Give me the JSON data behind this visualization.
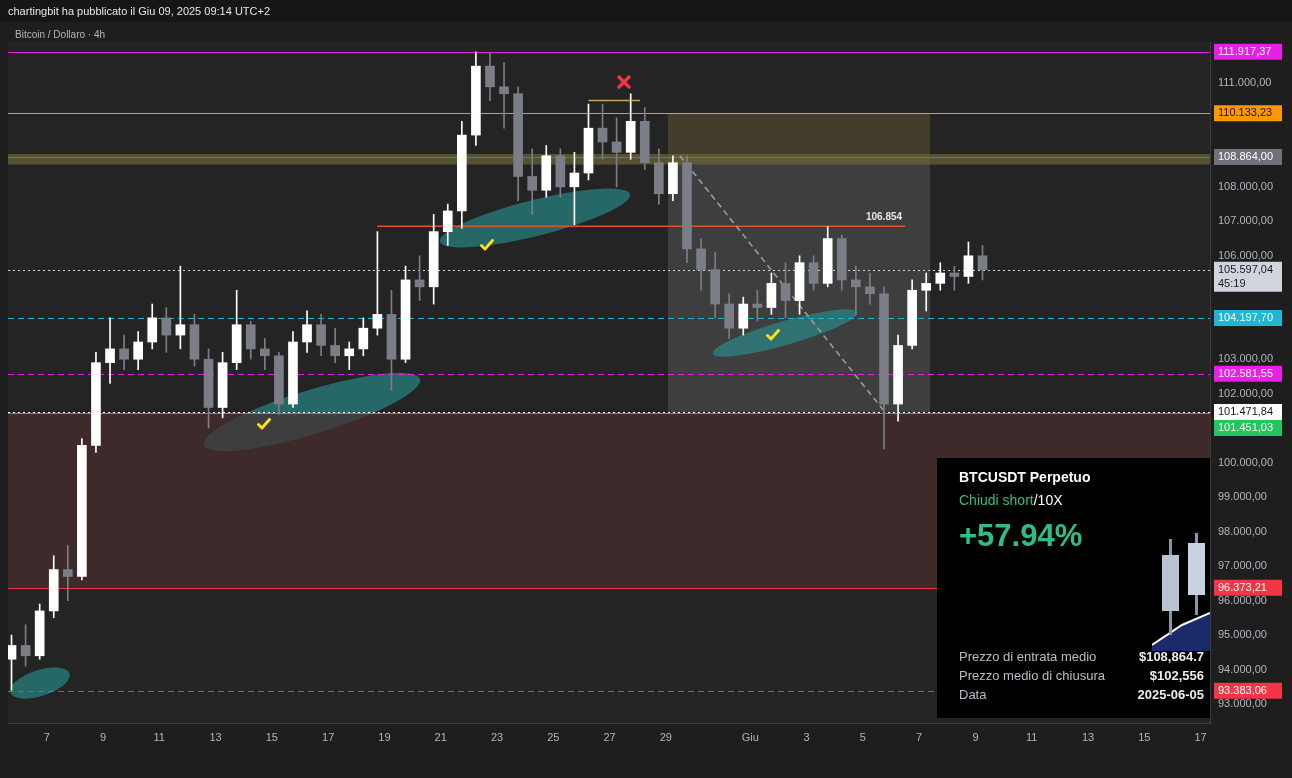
{
  "chart_data": [
    {
      "type": "candlestick",
      "title": "Bitcoin / Dollaro · 4h",
      "annotations": [
        "chartingbit ha pubblicato il Giu 09, 2025 09:14 UTC+2",
        {
          "text": "106.854",
          "x": "2025-06-05T18:00",
          "y": 106854
        }
      ],
      "x": [
        "2025-05-05T18:00",
        "2025-05-06T06:00",
        "2025-05-06T18:00",
        "2025-05-07T06:00",
        "2025-05-07T18:00",
        "2025-05-08T06:00",
        "2025-05-08T18:00",
        "2025-05-09T06:00",
        "2025-05-09T18:00",
        "2025-05-10T06:00",
        "2025-05-10T18:00",
        "2025-05-11T06:00",
        "2025-05-11T18:00",
        "2025-05-12T06:00",
        "2025-05-12T18:00",
        "2025-05-13T06:00",
        "2025-05-13T18:00",
        "2025-05-14T06:00",
        "2025-05-14T18:00",
        "2025-05-15T06:00",
        "2025-05-15T18:00",
        "2025-05-16T06:00",
        "2025-05-16T18:00",
        "2025-05-17T06:00",
        "2025-05-17T18:00",
        "2025-05-18T06:00",
        "2025-05-18T18:00",
        "2025-05-19T06:00",
        "2025-05-19T18:00",
        "2025-05-20T06:00",
        "2025-05-20T18:00",
        "2025-05-21T06:00",
        "2025-05-21T18:00",
        "2025-05-22T06:00",
        "2025-05-22T18:00",
        "2025-05-23T06:00",
        "2025-05-23T18:00",
        "2025-05-24T06:00",
        "2025-05-24T18:00",
        "2025-05-25T06:00",
        "2025-05-25T18:00",
        "2025-05-26T06:00",
        "2025-05-26T18:00",
        "2025-05-27T06:00",
        "2025-05-27T18:00",
        "2025-05-28T06:00",
        "2025-05-28T18:00",
        "2025-05-29T06:00",
        "2025-05-29T18:00",
        "2025-05-30T06:00",
        "2025-05-30T18:00",
        "2025-05-31T06:00",
        "2025-05-31T18:00",
        "2025-06-01T06:00",
        "2025-06-01T18:00",
        "2025-06-02T06:00",
        "2025-06-02T18:00",
        "2025-06-03T06:00",
        "2025-06-03T18:00",
        "2025-06-04T06:00",
        "2025-06-04T18:00",
        "2025-06-05T06:00",
        "2025-06-05T18:00",
        "2025-06-06T06:00",
        "2025-06-06T18:00",
        "2025-06-07T06:00",
        "2025-06-07T18:00",
        "2025-06-08T06:00",
        "2025-06-08T18:00",
        "2025-06-09T06:00"
      ],
      "ohlc": [
        [
          94300,
          95000,
          93400,
          94700
        ],
        [
          94700,
          95300,
          94100,
          94400
        ],
        [
          94400,
          95900,
          94300,
          95700
        ],
        [
          95700,
          97300,
          95500,
          96900
        ],
        [
          96900,
          97600,
          96000,
          96700
        ],
        [
          96700,
          100700,
          96600,
          100500
        ],
        [
          100500,
          103200,
          100300,
          102900
        ],
        [
          102900,
          104200,
          102300,
          103300
        ],
        [
          103300,
          103700,
          102700,
          103000
        ],
        [
          103000,
          103800,
          102700,
          103500
        ],
        [
          103500,
          104600,
          103300,
          104200
        ],
        [
          104200,
          104500,
          103200,
          103700
        ],
        [
          103700,
          105700,
          103300,
          104000
        ],
        [
          104000,
          104300,
          102800,
          103000
        ],
        [
          103000,
          103300,
          101000,
          101600
        ],
        [
          101600,
          103200,
          101300,
          102900
        ],
        [
          102900,
          105000,
          102700,
          104000
        ],
        [
          104000,
          104100,
          103000,
          103300
        ],
        [
          103300,
          103600,
          102700,
          103100
        ],
        [
          103100,
          103200,
          101400,
          101700
        ],
        [
          101700,
          103800,
          101600,
          103500
        ],
        [
          103500,
          104400,
          103200,
          104000
        ],
        [
          104000,
          104300,
          103100,
          103400
        ],
        [
          103400,
          103900,
          102900,
          103100
        ],
        [
          103100,
          103500,
          102700,
          103300
        ],
        [
          103300,
          104200,
          103100,
          103900
        ],
        [
          103900,
          106700,
          103700,
          104300
        ],
        [
          104300,
          105000,
          102100,
          103000
        ],
        [
          103000,
          105700,
          102900,
          105300
        ],
        [
          105300,
          106000,
          104700,
          105100
        ],
        [
          105100,
          107200,
          104600,
          106700
        ],
        [
          106700,
          107500,
          106300,
          107300
        ],
        [
          107300,
          109900,
          106800,
          109500
        ],
        [
          109500,
          111917.37,
          109200,
          111500
        ],
        [
          111500,
          111900,
          110500,
          110900
        ],
        [
          110900,
          111600,
          109700,
          110700
        ],
        [
          110700,
          110900,
          107600,
          108300
        ],
        [
          108300,
          109100,
          107200,
          107900
        ],
        [
          107900,
          109200,
          107700,
          108900
        ],
        [
          108900,
          109100,
          107700,
          108000
        ],
        [
          108000,
          109000,
          106900,
          108400
        ],
        [
          108400,
          110400,
          108200,
          109700
        ],
        [
          109700,
          110400,
          108800,
          109300
        ],
        [
          109300,
          110000,
          108000,
          109000
        ],
        [
          109000,
          110700,
          108800,
          109900
        ],
        [
          109900,
          110300,
          108500,
          108700
        ],
        [
          108700,
          109100,
          107500,
          107800
        ],
        [
          107800,
          108900,
          107600,
          108700
        ],
        [
          108700,
          108900,
          105800,
          106200
        ],
        [
          106200,
          106500,
          105000,
          105600
        ],
        [
          105600,
          106100,
          104200,
          104600
        ],
        [
          104600,
          104900,
          103600,
          103900
        ],
        [
          103900,
          104800,
          103700,
          104600
        ],
        [
          104600,
          105000,
          104100,
          104500
        ],
        [
          104500,
          105500,
          104300,
          105200
        ],
        [
          105200,
          105800,
          104200,
          104700
        ],
        [
          104700,
          106000,
          104300,
          105800
        ],
        [
          105800,
          106000,
          105000,
          105200
        ],
        [
          105200,
          106850,
          105100,
          106500
        ],
        [
          106500,
          106600,
          105000,
          105300
        ],
        [
          105300,
          105700,
          104300,
          105100
        ],
        [
          105100,
          105500,
          104600,
          104900
        ],
        [
          104900,
          105100,
          100400,
          101700
        ],
        [
          101700,
          103700,
          101200,
          103400
        ],
        [
          103400,
          105300,
          103300,
          105000
        ],
        [
          105000,
          105500,
          104400,
          105200
        ],
        [
          105200,
          105800,
          105000,
          105500
        ],
        [
          105500,
          105700,
          105000,
          105400
        ],
        [
          105400,
          106400,
          105200,
          106000
        ],
        [
          106000,
          106300,
          105300,
          105597.04
        ]
      ],
      "colors": [
        "#ffffff",
        "#7b7e87",
        "#ffffff",
        "#ffffff",
        "#7b7e87",
        "#ffffff",
        "#ffffff",
        "#ffffff",
        "#7b7e87",
        "#ffffff",
        "#ffffff",
        "#7b7e87",
        "#ffffff",
        "#7b7e87",
        "#7b7e87",
        "#ffffff",
        "#ffffff",
        "#7b7e87",
        "#7b7e87",
        "#7b7e87",
        "#ffffff",
        "#ffffff",
        "#7b7e87",
        "#7b7e87",
        "#ffffff",
        "#ffffff",
        "#ffffff",
        "#7b7e87",
        "#ffffff",
        "#7b7e87",
        "#ffffff",
        "#ffffff",
        "#ffffff",
        "#ffffff",
        "#7b7e87",
        "#7b7e87",
        "#7b7e87",
        "#7b7e87",
        "#ffffff",
        "#7b7e87",
        "#ffffff",
        "#ffffff",
        "#7b7e87",
        "#7b7e87",
        "#ffffff",
        "#7b7e87",
        "#7b7e87",
        "#ffffff",
        "#7b7e87",
        "#7b7e87",
        "#7b7e87",
        "#7b7e87",
        "#ffffff",
        "#7b7e87",
        "#ffffff",
        "#7b7e87",
        "#ffffff",
        "#7b7e87",
        "#ffffff",
        "#7b7e87",
        "#7b7e87",
        "#7b7e87",
        "#7b7e87",
        "#ffffff",
        "#ffffff",
        "#ffffff",
        "#ffffff",
        "#7b7e87",
        "#ffffff",
        "#7b7e87"
      ],
      "series": [
        {
          "type": "line",
          "color": "#a0a0a0",
          "line_style": "dashed",
          "x": [
            "2025-05-29T12:00",
            "2025-06-05T18:00"
          ],
          "values": [
            108900,
            101500
          ]
        },
        {
          "type": "line",
          "color": "#c9a45a",
          "line_style": "solid",
          "x": [
            "2025-05-26T06:00",
            "2025-05-28T02:00"
          ],
          "values": [
            110500,
            110500
          ]
        },
        {
          "type": "line",
          "color": "#e0522a",
          "line_style": "solid",
          "x": [
            "2025-05-18T18:00",
            "2025-06-06T12:00"
          ],
          "values": [
            106854,
            106854
          ]
        }
      ],
      "xlim": [
        "2025-05-05T15:00",
        "2025-06-17T08:00"
      ],
      "ylim": [
        92450,
        112200
      ],
      "xticks": [
        {
          "value": "2025-05-07",
          "label": "7"
        },
        {
          "value": "2025-05-09",
          "label": "9"
        },
        {
          "value": "2025-05-11",
          "label": "11"
        },
        {
          "value": "2025-05-13",
          "label": "13"
        },
        {
          "value": "2025-05-15",
          "label": "15"
        },
        {
          "value": "2025-05-17",
          "label": "17"
        },
        {
          "value": "2025-05-19",
          "label": "19"
        },
        {
          "value": "2025-05-21",
          "label": "21"
        },
        {
          "value": "2025-05-23",
          "label": "23"
        },
        {
          "value": "2025-05-25",
          "label": "25"
        },
        {
          "value": "2025-05-27",
          "label": "27"
        },
        {
          "value": "2025-05-29",
          "label": "29"
        },
        {
          "value": "2025-06-01",
          "label": "Giu"
        },
        {
          "value": "2025-06-03",
          "label": "3"
        },
        {
          "value": "2025-06-05",
          "label": "5"
        },
        {
          "value": "2025-06-07",
          "label": "7"
        },
        {
          "value": "2025-06-09",
          "label": "9"
        },
        {
          "value": "2025-06-11",
          "label": "11"
        },
        {
          "value": "2025-06-13",
          "label": "13"
        },
        {
          "value": "2025-06-15",
          "label": "15"
        },
        {
          "value": "2025-06-17",
          "label": "17"
        }
      ],
      "yticks": [
        {
          "value": 111000,
          "label": "111.000,00"
        },
        {
          "value": 108000,
          "label": "108.000,00"
        },
        {
          "value": 107000,
          "label": "107.000,00"
        },
        {
          "value": 106000,
          "label": "106.000,00"
        },
        {
          "value": 103000,
          "label": "103.000,00"
        },
        {
          "value": 102000,
          "label": "102.000,00"
        },
        {
          "value": 100000,
          "label": "100.000,00"
        },
        {
          "value": 99000,
          "label": "99.000,00"
        },
        {
          "value": 98000,
          "label": "98.000,00"
        },
        {
          "value": 97000,
          "label": "97.000,00"
        },
        {
          "value": 96000,
          "label": "96.000,00"
        },
        {
          "value": 95000,
          "label": "95.000,00"
        },
        {
          "value": 94000,
          "label": "94.000,00"
        },
        {
          "value": 93000,
          "label": "93.000,00"
        }
      ],
      "bands": [
        {
          "axis": "y",
          "from": 96373.21,
          "to": 101451.03,
          "color": "#4a2c2e"
        },
        {
          "axis": "y",
          "from": 108650,
          "to": 108950,
          "color": "#6b6637"
        }
      ],
      "ref_lines": [
        {
          "axis": "y",
          "value": 111917.37,
          "label": "111.917,37",
          "color": "#e91ee9",
          "line_style": "solid"
        },
        {
          "axis": "y",
          "value": 110133.23,
          "label": "110.133,23",
          "color": "#ff9800",
          "line_style": "solid"
        },
        {
          "axis": "y",
          "value": 108864,
          "label": "108.864,00",
          "color": "#6f7079",
          "line_style": "solid"
        },
        {
          "axis": "y",
          "value": 105597.04,
          "label": "105.597,04\n45:19",
          "color": "#d1d4dc",
          "line_style": "dotted"
        },
        {
          "axis": "y",
          "value": 104197.7,
          "label": "104.197,70",
          "color": "#1fb5d3",
          "line_style": "dashed"
        },
        {
          "axis": "y",
          "value": 102581.55,
          "label": "102.581,55",
          "color": "#e91ee9",
          "line_style": "dashed"
        },
        {
          "axis": "y",
          "value": 101471.84,
          "label": "101.471,84",
          "color": "#ffffff",
          "line_style": "dotted"
        },
        {
          "axis": "y",
          "value": 101451.03,
          "label": "101.451,03",
          "color": "#22c55e",
          "line_style": "solid"
        },
        {
          "axis": "y",
          "value": 96373.21,
          "label": "96.373,21",
          "color": "#f23645",
          "line_style": "solid"
        },
        {
          "axis": "y",
          "value": 93383.06,
          "label": "93.383,06",
          "color": "#f23645",
          "line_style": "dashed"
        }
      ]
    },
    {
      "type": "other",
      "title": "BTCUSDT Perpetuo",
      "subtitle": "Chiudi short/10X",
      "annotations": [
        "+57.94%",
        "Prezzo di entrata medio",
        "$108,864.7",
        "Prezzo medio di chiusura",
        "$102,556",
        "Data",
        "2025-06-05"
      ]
    }
  ]
}
